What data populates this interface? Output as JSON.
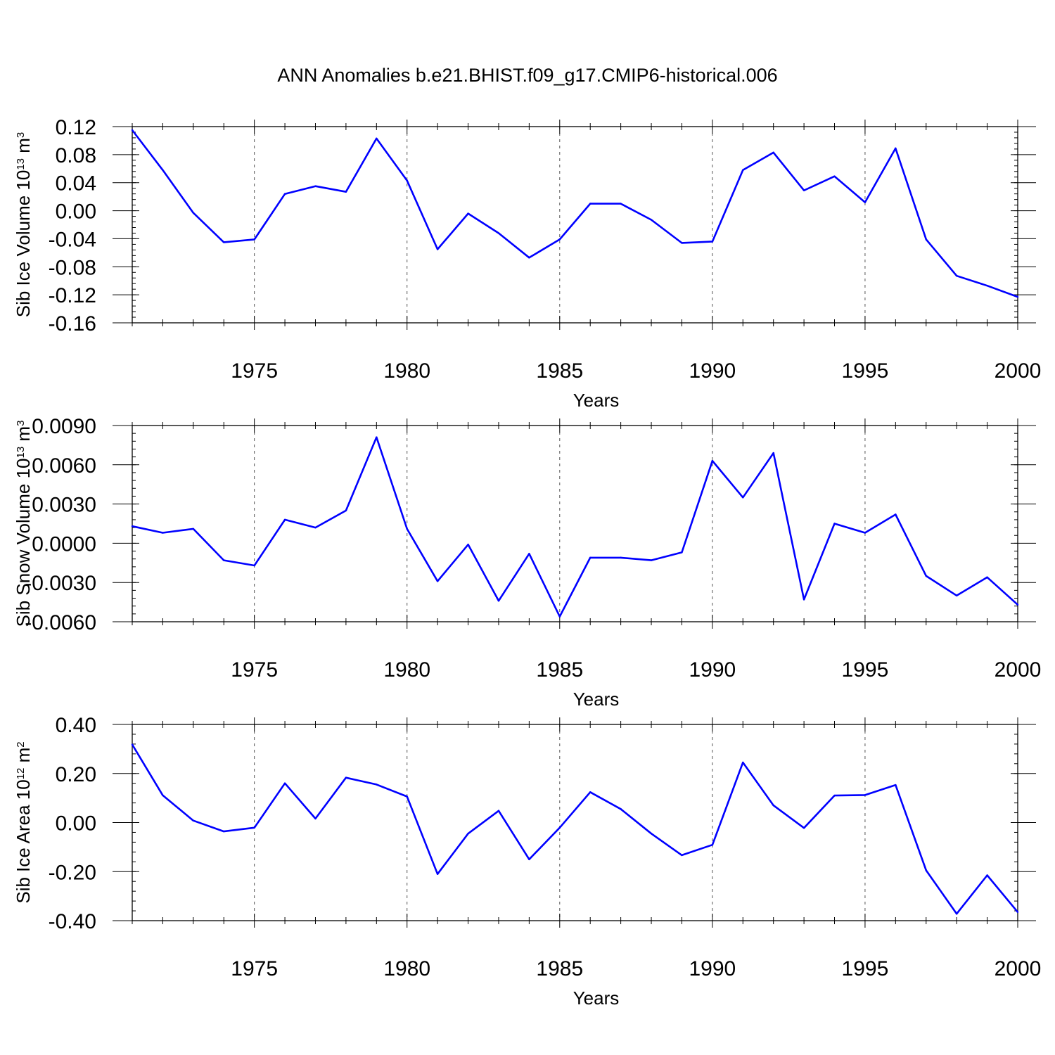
{
  "figure_title": "ANN Anomalies b.e21.BHIST.f09_g17.CMIP6-historical.006",
  "colors": {
    "line": "#0000ff",
    "axis": "#000000",
    "grid": "#555555",
    "background": "#ffffff"
  },
  "chart_data": [
    {
      "type": "line",
      "title": "",
      "xlabel": "Years",
      "ylabel": {
        "text": "Sib Ice Volume 10",
        "exp": "13",
        "unit": " m",
        "unit_exp": "3"
      },
      "xlim": [
        1971,
        2000
      ],
      "ylim": [
        -0.16,
        0.12
      ],
      "x_ticks": [
        1975,
        1980,
        1985,
        1990,
        1995,
        2000
      ],
      "x_tick_labels": [
        "1975",
        "1980",
        "1985",
        "1990",
        "1995",
        "2000"
      ],
      "y_ticks": [
        -0.16,
        -0.12,
        -0.08,
        -0.04,
        0.0,
        0.04,
        0.08,
        0.12
      ],
      "y_tick_labels": [
        "-0.16",
        "-0.12",
        "-0.08",
        "-0.04",
        "0.00",
        "0.04",
        "0.08",
        "0.12"
      ],
      "y_minor_step": 0.008,
      "grid_x": true,
      "x": [
        1971,
        1972,
        1973,
        1974,
        1975,
        1976,
        1977,
        1978,
        1979,
        1980,
        1981,
        1982,
        1983,
        1984,
        1985,
        1986,
        1987,
        1988,
        1989,
        1990,
        1991,
        1992,
        1993,
        1994,
        1995,
        1996,
        1997,
        1998,
        1999,
        2000
      ],
      "values": [
        0.115,
        0.058,
        -0.003,
        -0.045,
        -0.041,
        0.024,
        0.035,
        0.027,
        0.103,
        0.043,
        -0.055,
        -0.004,
        -0.032,
        -0.067,
        -0.041,
        0.01,
        0.01,
        -0.013,
        -0.046,
        -0.044,
        0.058,
        0.083,
        0.029,
        0.049,
        0.012,
        0.089,
        -0.041,
        -0.093,
        -0.107,
        -0.123
      ]
    },
    {
      "type": "line",
      "title": "",
      "xlabel": "Years",
      "ylabel": {
        "text": "Sib Snow Volume 10",
        "exp": "13",
        "unit": " m",
        "unit_exp": "3"
      },
      "xlim": [
        1971,
        2000
      ],
      "ylim": [
        -0.006,
        0.009
      ],
      "x_ticks": [
        1975,
        1980,
        1985,
        1990,
        1995,
        2000
      ],
      "x_tick_labels": [
        "1975",
        "1980",
        "1985",
        "1990",
        "1995",
        "2000"
      ],
      "y_ticks": [
        -0.006,
        -0.003,
        0.0,
        0.003,
        0.006,
        0.009
      ],
      "y_tick_labels": [
        "-0.0060",
        "-0.0030",
        "0.0000",
        "0.0030",
        "0.0060",
        "0.0090"
      ],
      "y_minor_step": 0.0006,
      "grid_x": true,
      "x": [
        1971,
        1972,
        1973,
        1974,
        1975,
        1976,
        1977,
        1978,
        1979,
        1980,
        1981,
        1982,
        1983,
        1984,
        1985,
        1986,
        1987,
        1988,
        1989,
        1990,
        1991,
        1992,
        1993,
        1994,
        1995,
        1996,
        1997,
        1998,
        1999,
        2000
      ],
      "values": [
        0.0013,
        0.0008,
        0.0011,
        -0.0013,
        -0.0017,
        0.0018,
        0.0012,
        0.0025,
        0.0081,
        0.0011,
        -0.0029,
        -0.0001,
        -0.0044,
        -0.0008,
        -0.0056,
        -0.0011,
        -0.0011,
        -0.0013,
        -0.0007,
        0.0063,
        0.0035,
        0.0069,
        -0.0043,
        0.0015,
        0.0008,
        0.0022,
        -0.0025,
        -0.004,
        -0.0026,
        -0.0047
      ]
    },
    {
      "type": "line",
      "title": "",
      "xlabel": "Years",
      "ylabel": {
        "text": "Sib Ice Area 10",
        "exp": "12",
        "unit": " m",
        "unit_exp": "2"
      },
      "xlim": [
        1971,
        2000
      ],
      "ylim": [
        -0.4,
        0.4
      ],
      "x_ticks": [
        1975,
        1980,
        1985,
        1990,
        1995,
        2000
      ],
      "x_tick_labels": [
        "1975",
        "1980",
        "1985",
        "1990",
        "1995",
        "2000"
      ],
      "y_ticks": [
        -0.4,
        -0.2,
        0.0,
        0.2,
        0.4
      ],
      "y_tick_labels": [
        "-0.40",
        "-0.20",
        "0.00",
        "0.20",
        "0.40"
      ],
      "y_minor_step": 0.04,
      "grid_x": true,
      "x": [
        1971,
        1972,
        1973,
        1974,
        1975,
        1976,
        1977,
        1978,
        1979,
        1980,
        1981,
        1982,
        1983,
        1984,
        1985,
        1986,
        1987,
        1988,
        1989,
        1990,
        1991,
        1992,
        1993,
        1994,
        1995,
        1996,
        1997,
        1998,
        1999,
        2000
      ],
      "values": [
        0.318,
        0.111,
        0.008,
        -0.036,
        -0.021,
        0.16,
        0.016,
        0.183,
        0.155,
        0.106,
        -0.21,
        -0.045,
        0.048,
        -0.15,
        -0.021,
        0.124,
        0.055,
        -0.045,
        -0.133,
        -0.091,
        0.245,
        0.07,
        -0.022,
        0.11,
        0.112,
        0.153,
        -0.195,
        -0.372,
        -0.215,
        -0.365
      ]
    }
  ]
}
